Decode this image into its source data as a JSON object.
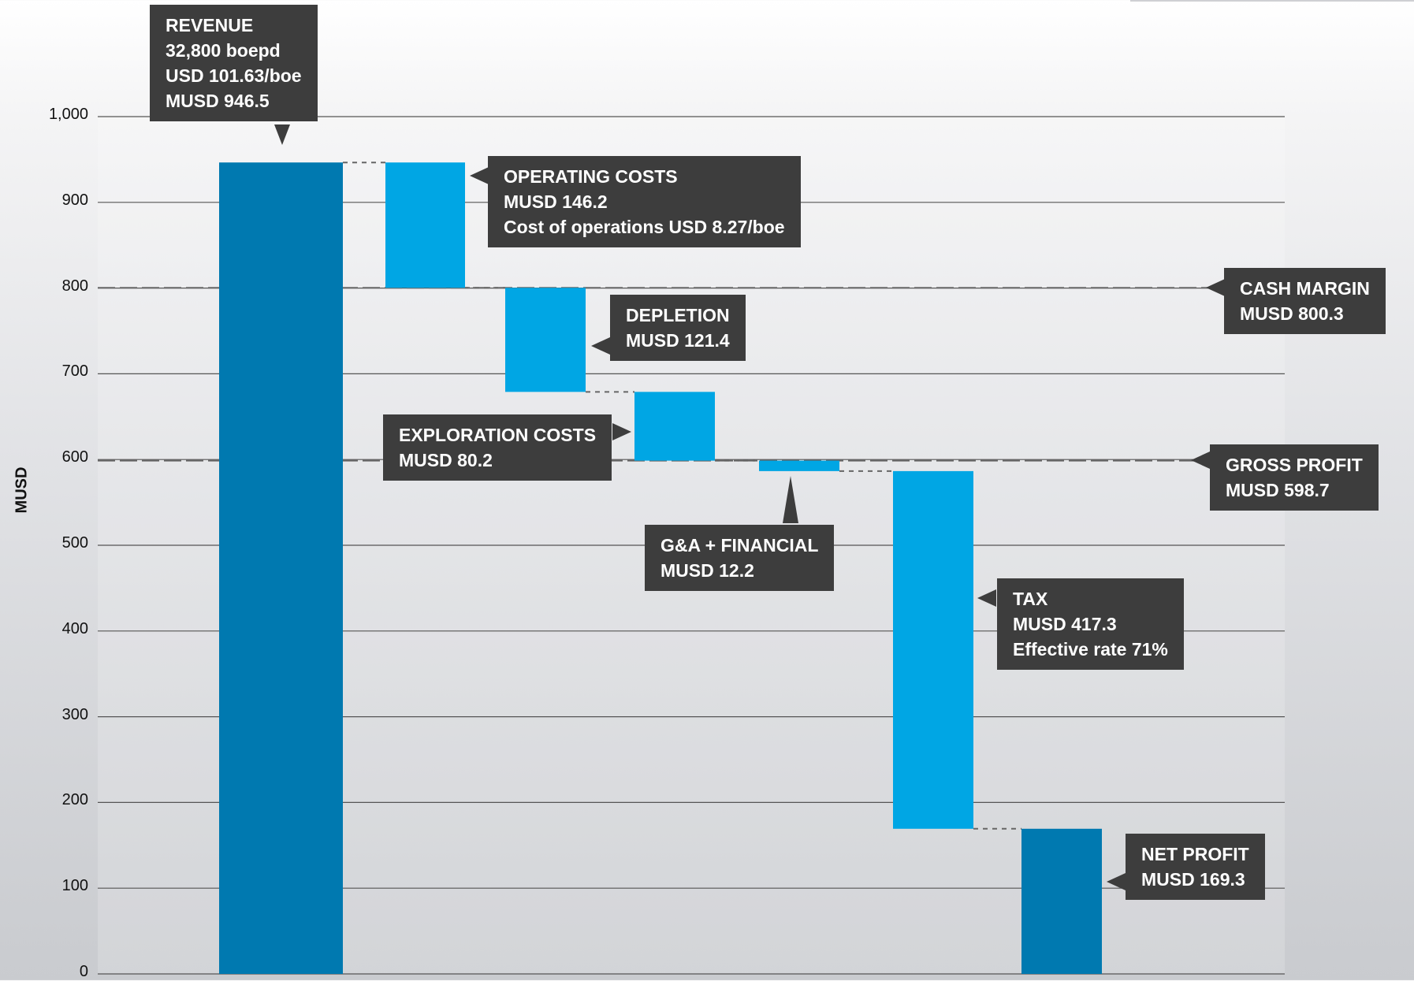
{
  "chart_data": {
    "type": "bar",
    "subtype": "waterfall",
    "ylabel": "MUSD",
    "ylim": [
      0,
      1000
    ],
    "yticks": [
      "0",
      "100",
      "200",
      "300",
      "400",
      "500",
      "600",
      "700",
      "800",
      "900",
      "1,000"
    ],
    "grid": true,
    "colors": {
      "total": "#0079b0",
      "step": "#00a6e4",
      "callout": "#3d3d3d"
    },
    "steps": [
      {
        "kind": "total",
        "start": 0,
        "end": 946.5,
        "label": [
          "REVENUE",
          "32,800 boepd",
          "USD 101.63/boe",
          "MUSD 946.5"
        ]
      },
      {
        "kind": "decrease",
        "start": 946.5,
        "end": 800.3,
        "label": [
          "OPERATING COSTS",
          "MUSD 146.2",
          "Cost of operations USD 8.27/boe"
        ]
      },
      {
        "kind": "decrease",
        "start": 800.3,
        "end": 678.9,
        "label": [
          "DEPLETION",
          "MUSD 121.4"
        ]
      },
      {
        "kind": "decrease",
        "start": 678.9,
        "end": 598.7,
        "label": [
          "EXPLORATION COSTS",
          "MUSD  80.2"
        ]
      },
      {
        "kind": "decrease",
        "start": 598.7,
        "end": 586.5,
        "label": [
          "G&A + FINANCIAL",
          "MUSD 12.2"
        ]
      },
      {
        "kind": "decrease",
        "start": 586.5,
        "end": 169.3,
        "label": [
          "TAX",
          "MUSD 417.3",
          "Effective rate 71%"
        ]
      },
      {
        "kind": "total",
        "start": 0,
        "end": 169.3,
        "label": [
          "NET PROFIT",
          "MUSD 169.3"
        ]
      }
    ],
    "reference_lines": [
      {
        "value": 800.3,
        "label": [
          "CASH MARGIN",
          "MUSD 800.3"
        ]
      },
      {
        "value": 598.7,
        "label": [
          "GROSS PROFIT",
          "MUSD 598.7"
        ]
      }
    ]
  }
}
